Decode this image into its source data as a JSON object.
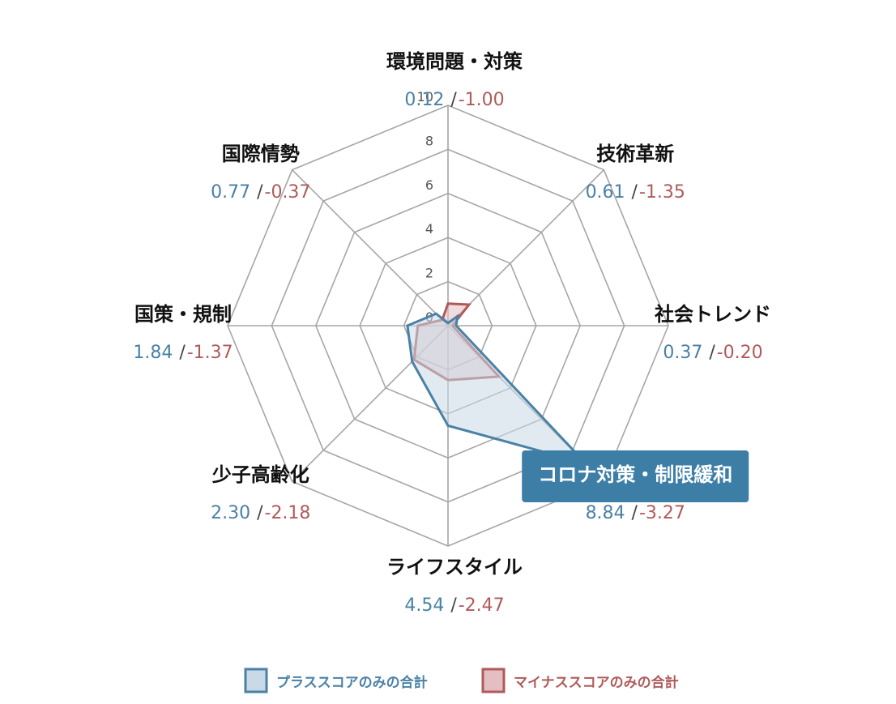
{
  "chart_data": {
    "type": "radar",
    "rmax": 10,
    "ticks": [
      "0",
      "2",
      "4",
      "6",
      "8",
      "10"
    ],
    "tick_values": [
      0,
      2,
      4,
      6,
      8,
      10
    ],
    "categories": [
      "環境問題・対策",
      "技術革新",
      "社会トレンド",
      "コロナ対策・制限緩和",
      "ライフスタイル",
      "少子高齢化",
      "国策・規制",
      "国際情勢"
    ],
    "highlight_category_index": 3,
    "plus_labels": [
      "0.12",
      "0.61",
      "0.37",
      "8.84",
      "4.54",
      "2.30",
      "1.84",
      "0.77"
    ],
    "minus_labels": [
      "-1.00",
      "-1.35",
      "-0.20",
      "-3.27",
      "-2.47",
      "-2.18",
      "-1.37",
      "-0.37"
    ],
    "separator": "/",
    "series": [
      {
        "name": "プラススコアのみの合計",
        "values": [
          0.12,
          0.61,
          0.37,
          8.84,
          4.54,
          2.3,
          1.84,
          0.77
        ],
        "color": "#4a81a6",
        "fill": "#c9d9e5"
      },
      {
        "name": "マイナススコアのみの合計",
        "values": [
          1.0,
          1.35,
          0.2,
          3.27,
          2.47,
          2.18,
          1.37,
          0.37
        ],
        "color": "#b05a5a",
        "fill": "#e3bfc2"
      }
    ],
    "colors": {
      "grid": "#a6a6a6",
      "plus_text": "#4a81a6",
      "minus_text": "#b05a5a",
      "highlight_bg": "#3d7ea7"
    }
  }
}
